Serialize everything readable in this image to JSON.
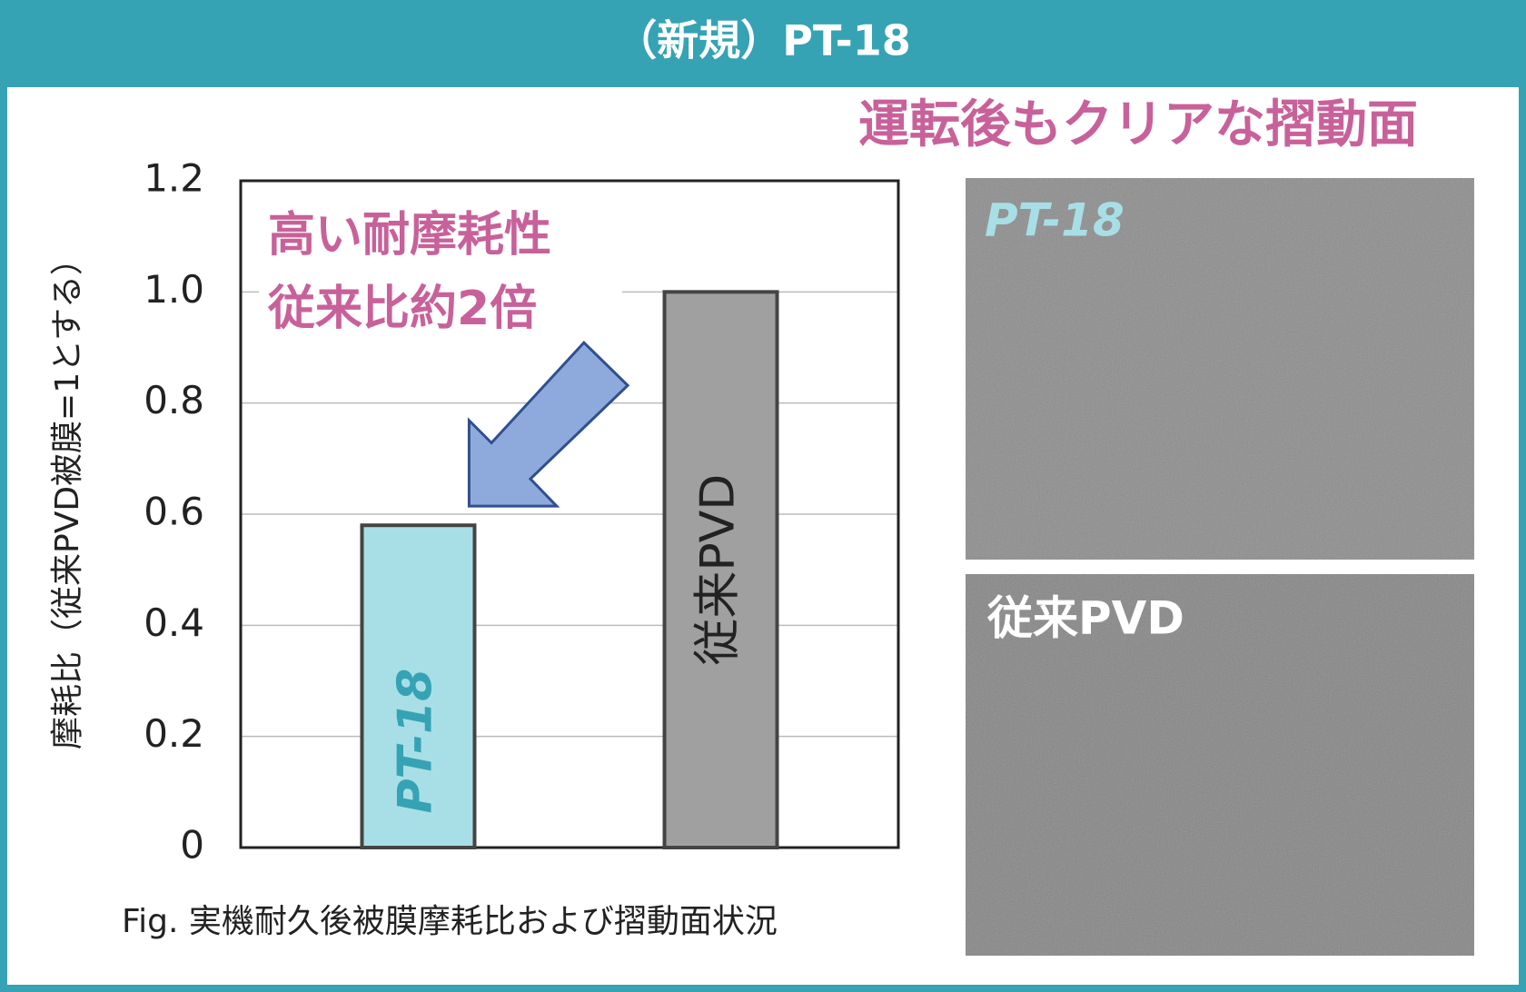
{
  "header": {
    "title": "（新規）PT-18"
  },
  "subtitle": "運転後もクリアな摺動面",
  "chart_data": {
    "type": "bar",
    "y_label": "摩耗比（従来PVD被膜=1とする）",
    "categories": [
      "PT-18",
      "従来PVD"
    ],
    "values": [
      0.58,
      1.0
    ],
    "colors": [
      "#a8dfe6",
      "#a0a0a0"
    ],
    "ylim": [
      0,
      1.2
    ],
    "yticks": [
      0,
      0.2,
      0.4,
      0.6,
      0.8,
      {
        "value": 1.0,
        "label": "1.0"
      },
      1.2
    ],
    "grid": true,
    "annotation": [
      "高い耐摩耗性",
      "従来比約2倍"
    ],
    "caption": "Fig. 実機耐久後被膜摩耗比および摺動面状況"
  },
  "photos": [
    {
      "label": "PT-18"
    },
    {
      "label": "従来PVD"
    }
  ]
}
